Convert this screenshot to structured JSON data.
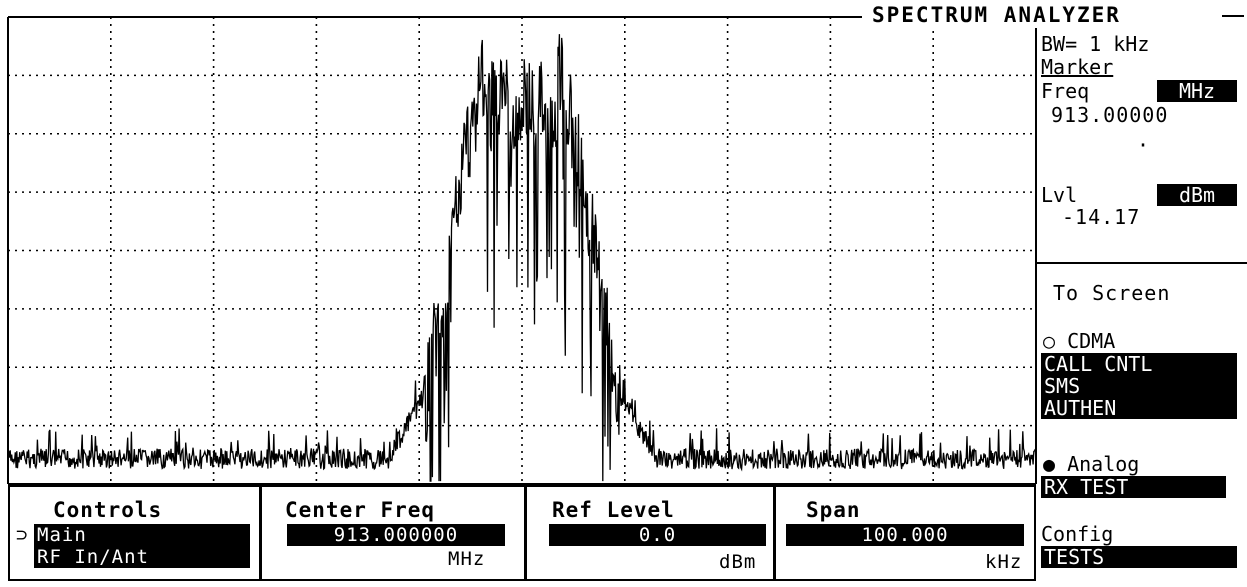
{
  "title": "SPECTRUM ANALYZER",
  "right_panel": {
    "bw": "BW= 1 kHz",
    "marker_heading": "Marker",
    "freq_label": "Freq",
    "freq_unit": "MHz",
    "freq_value": "913.00000",
    "level_label": "Lvl",
    "level_unit": "dBm",
    "level_value": "-14.17",
    "to_screen": "To Screen",
    "cdma_label": "CDMA",
    "cdma_items": [
      "CALL CNTL",
      "SMS",
      "AUTHEN"
    ],
    "analog_label": "Analog",
    "analog_item": "RX TEST",
    "config_label": "Config",
    "config_item": "TESTS"
  },
  "bottom": {
    "controls": {
      "title": "Controls",
      "cursor": "⊃",
      "items": [
        "Main",
        "RF In/Ant"
      ]
    },
    "center_freq": {
      "title": "Center Freq",
      "value": "913.000000",
      "unit": "MHz"
    },
    "ref_level": {
      "title": "Ref Level",
      "value": "0.0",
      "unit": "dBm"
    },
    "span": {
      "title": "Span",
      "value": "100.000",
      "unit": "kHz"
    }
  },
  "trace": {
    "center_frequency_mhz": 913.0,
    "span_khz": 100.0,
    "reference_level_dbm": 0.0,
    "marker_level_dbm": -14.17,
    "noise_floor_divisions_from_top": 7.5,
    "signal_plateau_divisions_from_top": 2.0,
    "peaks_divisions_from_top": 0.4,
    "colors": {
      "trace": "#000000",
      "grid": "#000000",
      "background": "#ffffff"
    }
  }
}
